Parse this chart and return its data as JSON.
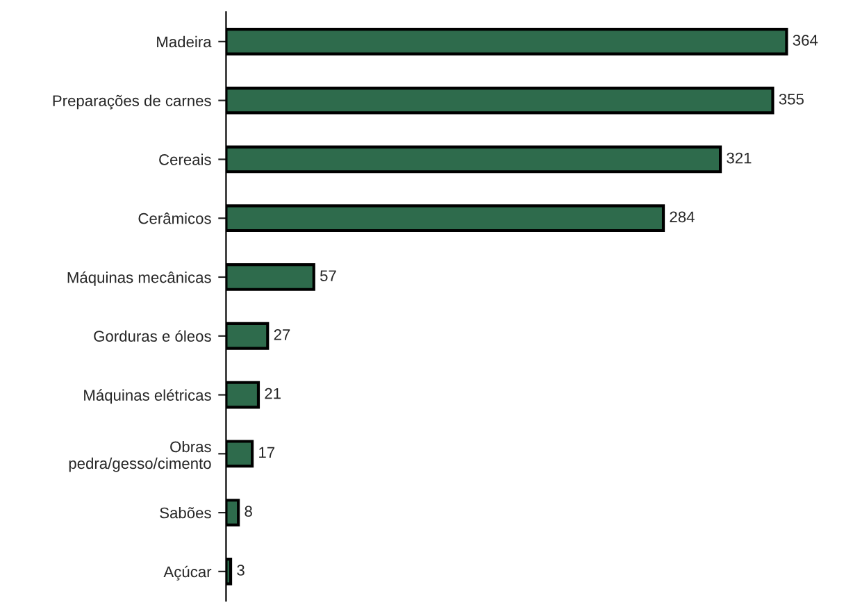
{
  "chart_data": {
    "type": "bar",
    "orientation": "horizontal",
    "categories": [
      "Madeira",
      "Preparações de carnes",
      "Cereais",
      "Cerâmicos",
      "Máquinas mecânicas",
      "Gorduras e óleos",
      "Máquinas elétricas",
      "Obras\npedra/gesso/cimento",
      "Sabões",
      "Açúcar"
    ],
    "values": [
      364,
      355,
      321,
      284,
      57,
      27,
      21,
      17,
      8,
      3
    ],
    "color": "#2e6b4c",
    "data_labels": true,
    "grid": false,
    "legend": false
  }
}
